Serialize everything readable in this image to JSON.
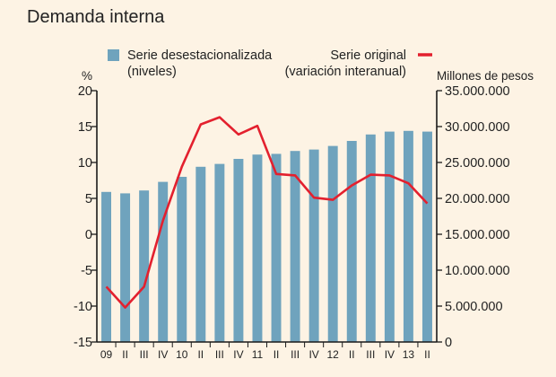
{
  "chart_data": {
    "type": "bar+line",
    "title": "Demanda interna",
    "categories": [
      "09",
      "II",
      "III",
      "IV",
      "10",
      "II",
      "III",
      "IV",
      "11",
      "II",
      "III",
      "IV",
      "12",
      "II",
      "III",
      "IV",
      "13",
      "II"
    ],
    "series": [
      {
        "name": "Serie desestacionalizada (niveles)",
        "type": "bar",
        "axis": "right",
        "color": "#6fa3bd",
        "values": [
          20900000,
          20700000,
          21100000,
          22300000,
          23000000,
          24400000,
          24800000,
          25500000,
          26100000,
          26200000,
          26600000,
          26800000,
          27300000,
          28000000,
          28900000,
          29300000,
          29400000,
          29300000
        ]
      },
      {
        "name": "Serie original (variación interanual)",
        "type": "line",
        "axis": "left",
        "color": "#e3202e",
        "values": [
          -7.3,
          -10.2,
          -7.3,
          1.9,
          9.4,
          15.3,
          16.3,
          13.9,
          15.1,
          8.4,
          8.2,
          5.1,
          4.8,
          6.8,
          8.3,
          8.2,
          7.1,
          4.3
        ]
      }
    ],
    "left_axis": {
      "label": "%",
      "min": -15,
      "max": 20,
      "ticks": [
        20,
        15,
        10,
        5,
        0,
        -5,
        -10,
        -15
      ]
    },
    "right_axis": {
      "label": "Millones de pesos",
      "min": 0,
      "max": 35000000,
      "ticks": [
        35000000,
        30000000,
        25000000,
        20000000,
        15000000,
        10000000,
        5000000,
        0
      ],
      "tick_labels": [
        "35.000.000",
        "30.000.000",
        "25.000.000",
        "20.000.000",
        "15.000.000",
        "10.000.000",
        "5.000.000",
        "0"
      ]
    },
    "legend": {
      "bar_line1": "Serie desestacionalizada",
      "bar_line2": "(niveles)",
      "line_line1": "Serie original",
      "line_line2": "(variación interanual)"
    },
    "grid": false
  }
}
